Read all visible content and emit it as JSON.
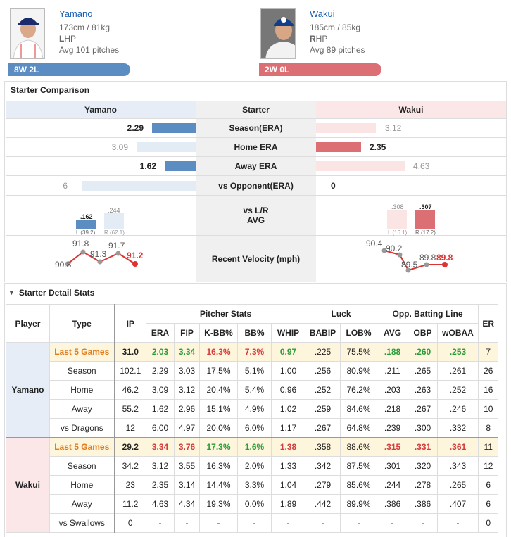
{
  "pitchers": {
    "left": {
      "name": "Yamano",
      "height_weight": "173cm / 81kg",
      "hand_letter": "L",
      "hand_rest": "HP",
      "avg_pitches": "Avg 101 pitches",
      "record": "8W 2L",
      "color": "#5b8dc2"
    },
    "right": {
      "name": "Wakui",
      "height_weight": "185cm / 85kg",
      "hand_letter": "R",
      "hand_rest": "HP",
      "avg_pitches": "Avg 89 pitches",
      "record": "2W 0L",
      "color": "#dc6f73"
    }
  },
  "comparison": {
    "title": "Starter Comparison",
    "header_left": "Yamano",
    "header_mid": "Starter",
    "header_right": "Wakui",
    "rows": [
      {
        "label": "Season(ERA)",
        "left": "2.29",
        "right": "3.12"
      },
      {
        "label": "Home ERA",
        "left": "3.09",
        "right": "2.35"
      },
      {
        "label": "Away ERA",
        "left": "1.62",
        "right": "4.63"
      },
      {
        "label": "vs Opponent(ERA)",
        "left": "6",
        "right": "0"
      }
    ],
    "lr_label_1": "vs L/R",
    "lr_label_2": "AVG",
    "left_lr": {
      "L_val": ".162",
      "R_val": ".244",
      "L_note": "L (39.2)",
      "R_note": "R (62.1)"
    },
    "right_lr": {
      "L_val": ".308",
      "R_val": ".307",
      "L_note": "L (16.1)",
      "R_note": "R (17.2)"
    },
    "velocity_label": "Recent Velocity (mph)",
    "left_velocity": [
      "90.8",
      "91.8",
      "91.3",
      "91.7",
      "91.2"
    ],
    "right_velocity": [
      "90.4",
      "90.2",
      "89.5",
      "89.8",
      "89.8"
    ]
  },
  "detail": {
    "title": "Starter Detail Stats",
    "headers": {
      "player": "Player",
      "type": "Type",
      "ip": "IP",
      "pitcher_stats": "Pitcher Stats",
      "luck": "Luck",
      "opp": "Opp. Batting Line",
      "era": "ERA",
      "fip": "FIP",
      "kbb": "K-BB%",
      "bb": "BB%",
      "whip": "WHIP",
      "babip": "BABIP",
      "lob": "LOB%",
      "avg": "AVG",
      "obp": "OBP",
      "woba": "wOBAA",
      "er": "ER"
    },
    "yamano": {
      "name": "Yamano",
      "rows": [
        {
          "type": "Last 5 Games",
          "ip": "31.0",
          "era": "2.03",
          "fip": "3.34",
          "kbb": "16.3%",
          "bb": "7.3%",
          "whip": "0.97",
          "babip": ".225",
          "lob": "75.5%",
          "avg": ".188",
          "obp": ".260",
          "woba": ".253",
          "er": "7"
        },
        {
          "type": "Season",
          "ip": "102.1",
          "era": "2.29",
          "fip": "3.03",
          "kbb": "17.5%",
          "bb": "5.1%",
          "whip": "1.00",
          "babip": ".256",
          "lob": "80.9%",
          "avg": ".211",
          "obp": ".265",
          "woba": ".261",
          "er": "26"
        },
        {
          "type": "Home",
          "ip": "46.2",
          "era": "3.09",
          "fip": "3.12",
          "kbb": "20.4%",
          "bb": "5.4%",
          "whip": "0.96",
          "babip": ".252",
          "lob": "76.2%",
          "avg": ".203",
          "obp": ".263",
          "woba": ".252",
          "er": "16"
        },
        {
          "type": "Away",
          "ip": "55.2",
          "era": "1.62",
          "fip": "2.96",
          "kbb": "15.1%",
          "bb": "4.9%",
          "whip": "1.02",
          "babip": ".259",
          "lob": "84.6%",
          "avg": ".218",
          "obp": ".267",
          "woba": ".246",
          "er": "10"
        },
        {
          "type": "vs Dragons",
          "ip": "12",
          "era": "6.00",
          "fip": "4.97",
          "kbb": "20.0%",
          "bb": "6.0%",
          "whip": "1.17",
          "babip": ".267",
          "lob": "64.8%",
          "avg": ".239",
          "obp": ".300",
          "woba": ".332",
          "er": "8"
        }
      ]
    },
    "wakui": {
      "name": "Wakui",
      "rows": [
        {
          "type": "Last 5 Games",
          "ip": "29.2",
          "era": "3.34",
          "fip": "3.76",
          "kbb": "17.3%",
          "bb": "1.6%",
          "whip": "1.38",
          "babip": ".358",
          "lob": "88.6%",
          "avg": ".315",
          "obp": ".331",
          "woba": ".361",
          "er": "11"
        },
        {
          "type": "Season",
          "ip": "34.2",
          "era": "3.12",
          "fip": "3.55",
          "kbb": "16.3%",
          "bb": "2.0%",
          "whip": "1.33",
          "babip": ".342",
          "lob": "87.5%",
          "avg": ".301",
          "obp": ".320",
          "woba": ".343",
          "er": "12"
        },
        {
          "type": "Home",
          "ip": "23",
          "era": "2.35",
          "fip": "3.14",
          "kbb": "14.4%",
          "bb": "3.3%",
          "whip": "1.04",
          "babip": ".279",
          "lob": "85.6%",
          "avg": ".244",
          "obp": ".278",
          "woba": ".265",
          "er": "6"
        },
        {
          "type": "Away",
          "ip": "11.2",
          "era": "4.63",
          "fip": "4.34",
          "kbb": "19.3%",
          "bb": "0.0%",
          "whip": "1.89",
          "babip": ".442",
          "lob": "89.9%",
          "avg": ".386",
          "obp": ".386",
          "woba": ".407",
          "er": "6"
        },
        {
          "type": "vs Swallows",
          "ip": "0",
          "era": "-",
          "fip": "-",
          "kbb": "-",
          "bb": "-",
          "whip": "-",
          "babip": "-",
          "lob": "-",
          "avg": "-",
          "obp": "-",
          "woba": "-",
          "er": "0"
        }
      ]
    }
  }
}
